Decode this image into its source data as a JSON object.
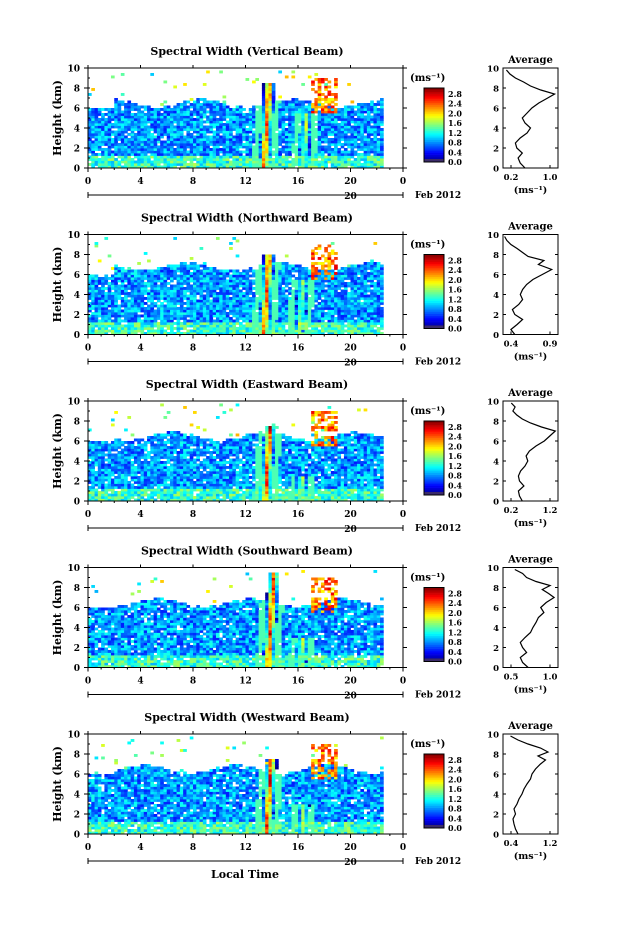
{
  "figure": {
    "xlabel": "Local Time",
    "date_label": "Feb 2012",
    "day_label": "20",
    "x_ticks": [
      "0",
      "4",
      "8",
      "12",
      "16",
      "20",
      "0"
    ],
    "y_ticks": [
      "0",
      "2",
      "4",
      "6",
      "8",
      "10"
    ],
    "ylabel": "Height (km)",
    "colorbar_unit": "(ms⁻¹)",
    "colorbar_ticks": [
      "0.0",
      "0.4",
      "0.8",
      "1.2",
      "1.6",
      "2.0",
      "2.4",
      "2.8"
    ],
    "avg_title": "Average",
    "avg_unit": "(ms⁻¹)"
  },
  "chart_data": [
    {
      "type": "heatmap",
      "title": "Spectral Width (Vertical Beam)",
      "xlabel": "",
      "ylabel": "Height (km)",
      "xlim": [
        0,
        24
      ],
      "ylim": [
        0,
        10
      ],
      "x_unit": "hours local time",
      "colorbar": {
        "label": "(ms⁻¹)",
        "range": [
          0.0,
          2.8
        ],
        "colormap": "jet"
      },
      "cloud_top_km": 6.5,
      "convective_cores": [
        {
          "time_h": 13.6,
          "top_km": 8.5,
          "width_ms": 2.8
        },
        {
          "time_h": 16.6,
          "top_km": 5.5,
          "width_ms": 1.8
        }
      ],
      "avg_profile": {
        "xlabel": "(ms⁻¹)",
        "xlim": [
          0.2,
          1.0
        ],
        "xticks": [
          "0.2",
          "1.0"
        ],
        "yticks": [
          "0",
          "2",
          "4",
          "6",
          "8",
          "10"
        ],
        "points": [
          [
            0.52,
            0
          ],
          [
            0.45,
            0.5
          ],
          [
            0.42,
            1
          ],
          [
            0.48,
            1.5
          ],
          [
            0.4,
            2
          ],
          [
            0.38,
            2.5
          ],
          [
            0.45,
            3
          ],
          [
            0.55,
            3.5
          ],
          [
            0.6,
            4
          ],
          [
            0.52,
            4.5
          ],
          [
            0.48,
            5
          ],
          [
            0.55,
            5.5
          ],
          [
            0.62,
            6
          ],
          [
            0.72,
            6.5
          ],
          [
            0.85,
            7
          ],
          [
            0.95,
            7.4
          ],
          [
            0.75,
            7.8
          ],
          [
            0.6,
            8.2
          ],
          [
            0.5,
            8.6
          ],
          [
            0.38,
            9.0
          ],
          [
            0.3,
            9.4
          ],
          [
            0.25,
            9.8
          ]
        ]
      }
    },
    {
      "type": "heatmap",
      "title": "Spectral Width (Northward Beam)",
      "xlabel": "",
      "ylabel": "Height (km)",
      "xlim": [
        0,
        24
      ],
      "ylim": [
        0,
        10
      ],
      "colorbar": {
        "label": "(ms⁻¹)",
        "range": [
          0.0,
          2.8
        ],
        "colormap": "jet"
      },
      "cloud_top_km": 6.8,
      "convective_cores": [
        {
          "time_h": 13.6,
          "top_km": 8.0,
          "width_ms": 2.8
        },
        {
          "time_h": 16.3,
          "top_km": 5.5,
          "width_ms": 1.8
        }
      ],
      "avg_profile": {
        "xlabel": "(ms⁻¹)",
        "xlim": [
          0.3,
          1.0
        ],
        "xticks": [
          "0.4",
          "0.9"
        ],
        "yticks": [
          "0",
          "2",
          "4",
          "6",
          "8",
          "10"
        ],
        "points": [
          [
            0.45,
            0
          ],
          [
            0.4,
            0.5
          ],
          [
            0.48,
            1
          ],
          [
            0.55,
            1.5
          ],
          [
            0.45,
            2
          ],
          [
            0.42,
            2.5
          ],
          [
            0.5,
            3
          ],
          [
            0.55,
            3.5
          ],
          [
            0.52,
            4
          ],
          [
            0.55,
            4.5
          ],
          [
            0.6,
            5
          ],
          [
            0.68,
            5.5
          ],
          [
            0.8,
            6
          ],
          [
            0.92,
            6.5
          ],
          [
            0.75,
            7
          ],
          [
            0.82,
            7.4
          ],
          [
            0.62,
            7.8
          ],
          [
            0.55,
            8.2
          ],
          [
            0.48,
            8.6
          ],
          [
            0.4,
            9.0
          ],
          [
            0.35,
            9.4
          ],
          [
            0.32,
            9.8
          ]
        ]
      }
    },
    {
      "type": "heatmap",
      "title": "Spectral Width (Eastward Beam)",
      "xlabel": "",
      "ylabel": "Height (km)",
      "xlim": [
        0,
        24
      ],
      "ylim": [
        0,
        10
      ],
      "colorbar": {
        "label": "(ms⁻¹)",
        "range": [
          0.0,
          2.8
        ],
        "colormap": "jet"
      },
      "cloud_top_km": 6.5,
      "convective_cores": [
        {
          "time_h": 13.7,
          "top_km": 7.5,
          "width_ms": 2.8
        },
        {
          "time_h": 16.4,
          "top_km": 2.5,
          "width_ms": 2.0
        }
      ],
      "avg_profile": {
        "xlabel": "(ms⁻¹)",
        "xlim": [
          0.2,
          1.2
        ],
        "xticks": [
          "0.2",
          "1.2"
        ],
        "yticks": [
          "0",
          "2",
          "4",
          "6",
          "8",
          "10"
        ],
        "points": [
          [
            0.55,
            0
          ],
          [
            0.5,
            0.5
          ],
          [
            0.48,
            1
          ],
          [
            0.58,
            1.5
          ],
          [
            0.5,
            2
          ],
          [
            0.48,
            2.5
          ],
          [
            0.52,
            3
          ],
          [
            0.6,
            3.5
          ],
          [
            0.65,
            4
          ],
          [
            0.62,
            4.5
          ],
          [
            0.68,
            5
          ],
          [
            0.8,
            5.5
          ],
          [
            0.95,
            6
          ],
          [
            1.05,
            6.5
          ],
          [
            1.15,
            7
          ],
          [
            0.9,
            7.4
          ],
          [
            0.7,
            7.8
          ],
          [
            0.55,
            8.2
          ],
          [
            0.45,
            8.6
          ],
          [
            0.38,
            9.0
          ],
          [
            0.42,
            9.4
          ],
          [
            0.35,
            9.8
          ]
        ]
      }
    },
    {
      "type": "heatmap",
      "title": "Spectral Width (Southward Beam)",
      "xlabel": "",
      "ylabel": "Height (km)",
      "xlim": [
        0,
        24
      ],
      "ylim": [
        0,
        10
      ],
      "colorbar": {
        "label": "(ms⁻¹)",
        "range": [
          0.0,
          2.8
        ],
        "colormap": "jet"
      },
      "cloud_top_km": 6.5,
      "convective_cores": [
        {
          "time_h": 13.9,
          "top_km": 9.5,
          "width_ms": 2.8
        },
        {
          "time_h": 16.4,
          "top_km": 3.0,
          "width_ms": 2.0
        }
      ],
      "avg_profile": {
        "xlabel": "(ms⁻¹)",
        "xlim": [
          0.3,
          1.0
        ],
        "xticks": [
          "0.5",
          "1.0"
        ],
        "yticks": [
          "0",
          "2",
          "4",
          "6",
          "8",
          "10"
        ],
        "points": [
          [
            0.62,
            0
          ],
          [
            0.55,
            0.5
          ],
          [
            0.52,
            1
          ],
          [
            0.6,
            1.5
          ],
          [
            0.55,
            2
          ],
          [
            0.52,
            2.5
          ],
          [
            0.58,
            3
          ],
          [
            0.65,
            3.5
          ],
          [
            0.68,
            4
          ],
          [
            0.72,
            4.5
          ],
          [
            0.75,
            5
          ],
          [
            0.82,
            5.5
          ],
          [
            0.78,
            6
          ],
          [
            0.85,
            6.5
          ],
          [
            0.95,
            7
          ],
          [
            0.88,
            7.4
          ],
          [
            0.8,
            7.8
          ],
          [
            0.9,
            8.2
          ],
          [
            0.72,
            8.6
          ],
          [
            0.6,
            9.0
          ],
          [
            0.55,
            9.4
          ],
          [
            0.45,
            9.8
          ]
        ]
      }
    },
    {
      "type": "heatmap",
      "title": "Spectral Width (Westward Beam)",
      "xlabel": "Local Time",
      "ylabel": "Height (km)",
      "xlim": [
        0,
        24
      ],
      "ylim": [
        0,
        10
      ],
      "colorbar": {
        "label": "(ms⁻¹)",
        "range": [
          0.0,
          2.8
        ],
        "colormap": "jet"
      },
      "cloud_top_km": 6.5,
      "convective_cores": [
        {
          "time_h": 13.8,
          "top_km": 7.5,
          "width_ms": 2.8
        },
        {
          "time_h": 16.5,
          "top_km": 3.0,
          "width_ms": 1.8
        }
      ],
      "avg_profile": {
        "xlabel": "(ms⁻¹)",
        "xlim": [
          0.3,
          1.4
        ],
        "xticks": [
          "0.4",
          "1.2"
        ],
        "yticks": [
          "0",
          "2",
          "4",
          "6",
          "8",
          "10"
        ],
        "points": [
          [
            0.6,
            0
          ],
          [
            0.55,
            0.5
          ],
          [
            0.52,
            1
          ],
          [
            0.5,
            1.5
          ],
          [
            0.55,
            2
          ],
          [
            0.52,
            2.5
          ],
          [
            0.58,
            3
          ],
          [
            0.62,
            3.5
          ],
          [
            0.68,
            4
          ],
          [
            0.72,
            4.5
          ],
          [
            0.78,
            5
          ],
          [
            0.85,
            5.5
          ],
          [
            0.88,
            6
          ],
          [
            0.95,
            6.5
          ],
          [
            1.05,
            7
          ],
          [
            1.15,
            7.4
          ],
          [
            1.0,
            7.8
          ],
          [
            1.2,
            8.2
          ],
          [
            1.05,
            8.6
          ],
          [
            0.8,
            9.0
          ],
          [
            0.6,
            9.4
          ],
          [
            0.45,
            9.8
          ]
        ]
      }
    }
  ]
}
